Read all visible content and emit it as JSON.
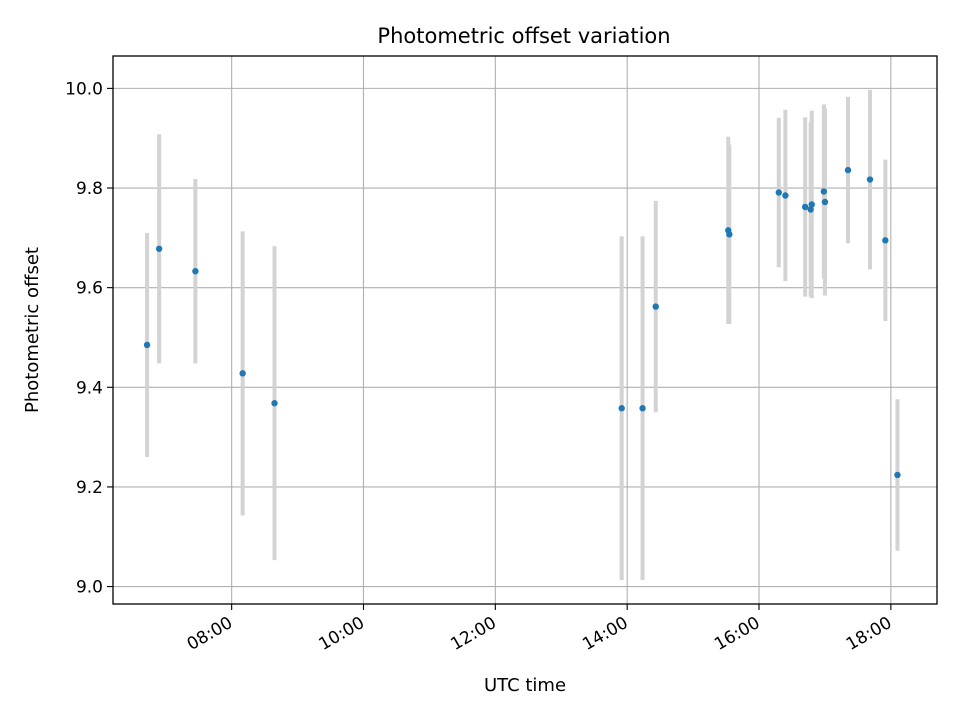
{
  "chart_data": {
    "type": "scatter",
    "title": "Photometric offset variation",
    "xlabel": "UTC time",
    "ylabel": "Photometric offset",
    "xlim": [
      "06:12",
      "18:42"
    ],
    "ylim": [
      8.965,
      10.065
    ],
    "xticks": [
      "08:00",
      "10:00",
      "12:00",
      "14:00",
      "16:00",
      "18:00"
    ],
    "yticks": [
      "9.0",
      "9.2",
      "9.4",
      "9.6",
      "9.8",
      "10.0"
    ],
    "grid": true,
    "colors": {
      "point": "#1f77b4",
      "errorbar": "#d3d3d3",
      "grid": "#b0b0b0"
    },
    "points": [
      {
        "x": "06:43",
        "y": 9.485,
        "err": 0.225
      },
      {
        "x": "06:54",
        "y": 9.678,
        "err": 0.23
      },
      {
        "x": "07:27",
        "y": 9.633,
        "err": 0.185
      },
      {
        "x": "08:10",
        "y": 9.428,
        "err": 0.285
      },
      {
        "x": "08:39",
        "y": 9.368,
        "err": 0.315
      },
      {
        "x": "13:55",
        "y": 9.358,
        "err": 0.345
      },
      {
        "x": "14:14",
        "y": 9.358,
        "err": 0.345
      },
      {
        "x": "14:26",
        "y": 9.562,
        "err": 0.212
      },
      {
        "x": "15:32",
        "y": 9.715,
        "err": 0.188
      },
      {
        "x": "15:33",
        "y": 9.707,
        "err": 0.18
      },
      {
        "x": "16:18",
        "y": 9.791,
        "err": 0.15
      },
      {
        "x": "16:24",
        "y": 9.785,
        "err": 0.172
      },
      {
        "x": "16:42",
        "y": 9.762,
        "err": 0.18
      },
      {
        "x": "16:47",
        "y": 9.757,
        "err": 0.175
      },
      {
        "x": "16:48",
        "y": 9.767,
        "err": 0.188
      },
      {
        "x": "16:59",
        "y": 9.793,
        "err": 0.175
      },
      {
        "x": "17:00",
        "y": 9.772,
        "err": 0.188
      },
      {
        "x": "17:21",
        "y": 9.836,
        "err": 0.147
      },
      {
        "x": "17:41",
        "y": 9.817,
        "err": 0.18
      },
      {
        "x": "17:55",
        "y": 9.695,
        "err": 0.162
      },
      {
        "x": "18:06",
        "y": 9.224,
        "err": 0.152
      }
    ]
  }
}
